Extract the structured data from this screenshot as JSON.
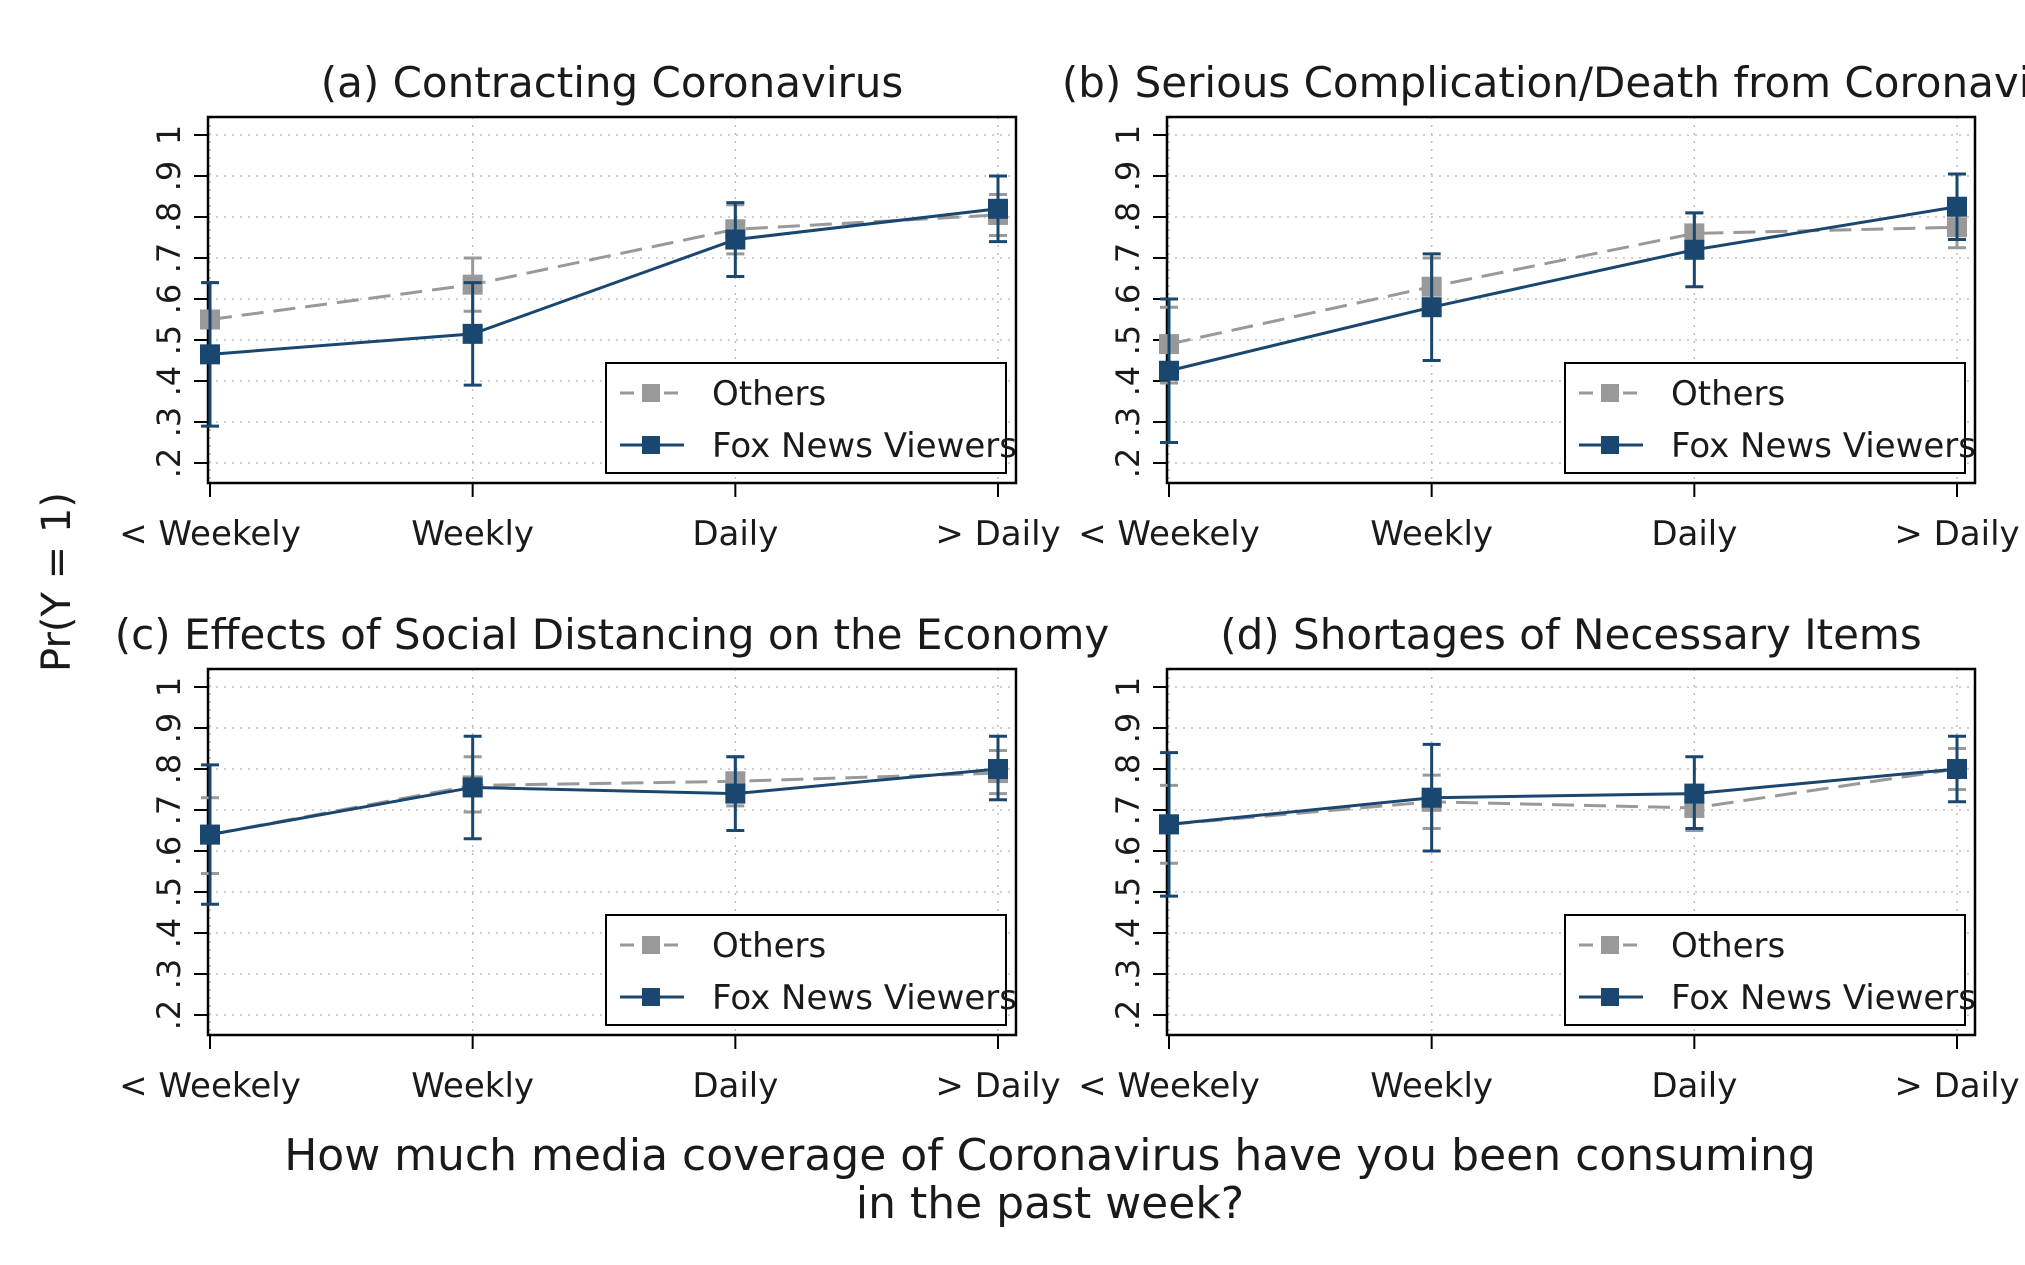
{
  "figure": {
    "ylabel": "Pr(Y = 1)",
    "xlabel_line1": "How much media coverage of Coronavirus have you been consuming",
    "xlabel_line2": "in the past week?"
  },
  "colors": {
    "others": "#999999",
    "fox": "#1a476f",
    "grid": "#bdbdbd",
    "frame": "#000000"
  },
  "chart_data": [
    {
      "type": "line",
      "title": "(a) Contracting Coronavirus",
      "categories": [
        "< Weekely",
        "Weekly",
        "Daily",
        "> Daily"
      ],
      "ylim": [
        0.2,
        1.0
      ],
      "yticks": [
        ".2",
        ".3",
        ".4",
        ".5",
        ".6",
        ".7",
        ".8",
        ".9",
        "1"
      ],
      "legend": "bottom-right",
      "grid": true,
      "series": [
        {
          "name": "Others",
          "style": "dashed",
          "values": [
            0.55,
            0.635,
            0.77,
            0.805
          ],
          "lower": [
            0.46,
            0.57,
            0.71,
            0.755
          ],
          "upper": [
            0.64,
            0.7,
            0.83,
            0.855
          ]
        },
        {
          "name": "Fox News Viewers",
          "style": "solid",
          "values": [
            0.465,
            0.515,
            0.745,
            0.82
          ],
          "lower": [
            0.29,
            0.39,
            0.655,
            0.74
          ],
          "upper": [
            0.64,
            0.64,
            0.835,
            0.9
          ]
        }
      ]
    },
    {
      "type": "line",
      "title": "(b) Serious Complication/Death from Coronavirus",
      "categories": [
        "< Weekely",
        "Weekly",
        "Daily",
        "> Daily"
      ],
      "ylim": [
        0.2,
        1.0
      ],
      "yticks": [
        ".2",
        ".3",
        ".4",
        ".5",
        ".6",
        ".7",
        ".8",
        ".9",
        "1"
      ],
      "legend": "bottom-right",
      "grid": true,
      "series": [
        {
          "name": "Others",
          "style": "dashed",
          "values": [
            0.49,
            0.63,
            0.76,
            0.775
          ],
          "lower": [
            0.395,
            0.56,
            0.71,
            0.725
          ],
          "upper": [
            0.58,
            0.7,
            0.81,
            0.825
          ]
        },
        {
          "name": "Fox News Viewers",
          "style": "solid",
          "values": [
            0.425,
            0.58,
            0.72,
            0.825
          ],
          "lower": [
            0.25,
            0.45,
            0.63,
            0.745
          ],
          "upper": [
            0.6,
            0.71,
            0.81,
            0.905
          ]
        }
      ]
    },
    {
      "type": "line",
      "title": "(c) Effects of Social Distancing on the Economy",
      "categories": [
        "< Weekely",
        "Weekly",
        "Daily",
        "> Daily"
      ],
      "ylim": [
        0.2,
        1.0
      ],
      "yticks": [
        ".2",
        ".3",
        ".4",
        ".5",
        ".6",
        ".7",
        ".8",
        ".9",
        "1"
      ],
      "legend": "bottom-right",
      "grid": true,
      "series": [
        {
          "name": "Others",
          "style": "dashed",
          "values": [
            0.64,
            0.76,
            0.77,
            0.79
          ],
          "lower": [
            0.545,
            0.695,
            0.71,
            0.74
          ],
          "upper": [
            0.73,
            0.83,
            0.83,
            0.845
          ]
        },
        {
          "name": "Fox News Viewers",
          "style": "solid",
          "values": [
            0.64,
            0.755,
            0.74,
            0.8
          ],
          "lower": [
            0.47,
            0.63,
            0.65,
            0.725
          ],
          "upper": [
            0.81,
            0.88,
            0.83,
            0.88
          ]
        }
      ]
    },
    {
      "type": "line",
      "title": "(d) Shortages of Necessary Items",
      "categories": [
        "< Weekely",
        "Weekly",
        "Daily",
        "> Daily"
      ],
      "ylim": [
        0.2,
        1.0
      ],
      "yticks": [
        ".2",
        ".3",
        ".4",
        ".5",
        ".6",
        ".7",
        ".8",
        ".9",
        "1"
      ],
      "legend": "bottom-right",
      "grid": true,
      "series": [
        {
          "name": "Others",
          "style": "dashed",
          "values": [
            0.665,
            0.72,
            0.705,
            0.8
          ],
          "lower": [
            0.57,
            0.655,
            0.65,
            0.75
          ],
          "upper": [
            0.76,
            0.785,
            0.76,
            0.85
          ]
        },
        {
          "name": "Fox News Viewers",
          "style": "solid",
          "values": [
            0.665,
            0.73,
            0.74,
            0.8
          ],
          "lower": [
            0.49,
            0.6,
            0.655,
            0.72
          ],
          "upper": [
            0.84,
            0.86,
            0.83,
            0.88
          ]
        }
      ]
    }
  ]
}
